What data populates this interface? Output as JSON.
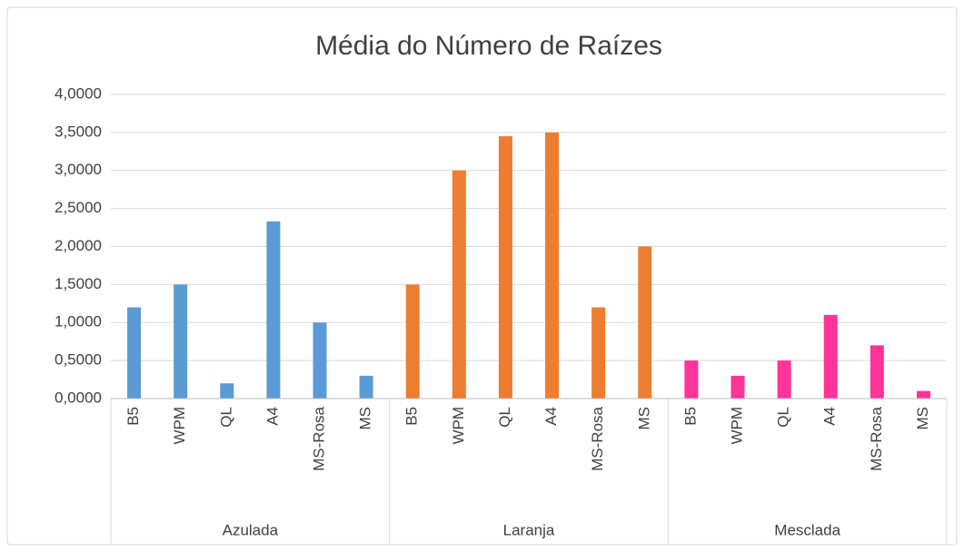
{
  "chart_data": {
    "type": "bar",
    "title": "Média do Número de Raízes",
    "groups": [
      {
        "name": "Azulada",
        "color": "#5b9bd5",
        "categories": [
          "B5",
          "WPM",
          "QL",
          "A4",
          "MS-Rosa",
          "MS"
        ],
        "values": [
          1.2,
          1.5,
          0.2,
          2.33,
          1.0,
          0.3
        ]
      },
      {
        "name": "Laranja",
        "color": "#ed7d31",
        "categories": [
          "B5",
          "WPM",
          "QL",
          "A4",
          "MS-Rosa",
          "MS"
        ],
        "values": [
          1.5,
          3.0,
          3.45,
          3.5,
          1.2,
          2.0
        ]
      },
      {
        "name": "Mesclada",
        "color": "#ff3399",
        "categories": [
          "B5",
          "WPM",
          "QL",
          "A4",
          "MS-Rosa",
          "MS"
        ],
        "values": [
          0.5,
          0.3,
          0.5,
          1.1,
          0.7,
          0.1
        ]
      }
    ],
    "ylim": [
      0,
      4
    ],
    "yticks": [
      {
        "value": 0,
        "label": "0,0000"
      },
      {
        "value": 0.5,
        "label": "0,5000"
      },
      {
        "value": 1,
        "label": "1,0000"
      },
      {
        "value": 1.5,
        "label": "1,5000"
      },
      {
        "value": 2,
        "label": "2,0000"
      },
      {
        "value": 2.5,
        "label": "2,5000"
      },
      {
        "value": 3,
        "label": "3,0000"
      },
      {
        "value": 3.5,
        "label": "3,5000"
      },
      {
        "value": 4,
        "label": "4,0000"
      }
    ],
    "grid": true
  }
}
